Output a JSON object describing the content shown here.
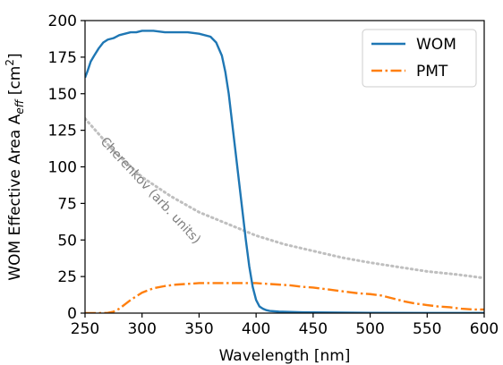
{
  "chart_data": {
    "type": "line",
    "xlabel": "Wavelength [nm]",
    "ylabel": "WOM Effective Area A",
    "ylabel_subscript": "eff",
    "ylabel_unit": " [cm",
    "ylabel_unit_sup": "2",
    "ylabel_unit_end": "]",
    "xlim": [
      250,
      600
    ],
    "ylim": [
      0,
      200
    ],
    "xticks": [
      250,
      300,
      350,
      400,
      450,
      500,
      550,
      600
    ],
    "yticks": [
      0,
      25,
      50,
      75,
      100,
      125,
      150,
      175,
      200
    ],
    "grid": false,
    "legend_position": "top-right",
    "series": [
      {
        "name": "WOM",
        "color": "#1f77b4",
        "style": "solid",
        "x": [
          250,
          252,
          255,
          258,
          262,
          266,
          270,
          275,
          280,
          285,
          290,
          295,
          300,
          305,
          310,
          320,
          330,
          340,
          350,
          360,
          365,
          370,
          373,
          376,
          379,
          382,
          385,
          388,
          391,
          394,
          397,
          400,
          403,
          406,
          409,
          412,
          415,
          420,
          430,
          440,
          450,
          475,
          500,
          550,
          600
        ],
        "y": [
          161,
          165,
          172,
          176,
          181,
          185,
          187,
          188,
          190,
          191,
          192,
          192,
          193,
          193,
          193,
          192,
          192,
          192,
          191,
          189,
          185,
          176,
          165,
          150,
          130,
          110,
          90,
          70,
          50,
          32,
          18,
          9,
          4.5,
          3,
          2,
          1.5,
          1.3,
          1,
          0.8,
          0.6,
          0.5,
          0.3,
          0.2,
          0.1,
          0.1
        ]
      },
      {
        "name": "PMT",
        "color": "#ff7f0e",
        "style": "dashdot",
        "x": [
          250,
          260,
          270,
          275,
          280,
          285,
          290,
          300,
          310,
          320,
          330,
          340,
          350,
          360,
          370,
          380,
          390,
          400,
          410,
          420,
          430,
          440,
          450,
          460,
          470,
          480,
          490,
          500,
          510,
          520,
          530,
          540,
          550,
          560,
          570,
          580,
          590,
          600
        ],
        "y": [
          0,
          0,
          0.2,
          1,
          3,
          6,
          9,
          14,
          17,
          18.5,
          19.5,
          20,
          20.5,
          20.5,
          20.5,
          20.5,
          20.5,
          20.5,
          20,
          19.5,
          19,
          18,
          17.5,
          16.5,
          15.5,
          14.5,
          13.5,
          13,
          12,
          10,
          8,
          6.5,
          5.5,
          4.5,
          4,
          3,
          2.5,
          2.5
        ]
      },
      {
        "color": "#bfbfbf",
        "style": "dotted",
        "x": [
          250,
          275,
          300,
          325,
          350,
          375,
          400,
          425,
          450,
          475,
          500,
          525,
          550,
          575,
          600
        ],
        "y": [
          133,
          111,
          93,
          80,
          69,
          61,
          53,
          47,
          42.5,
          38,
          34.5,
          31.5,
          28.5,
          26.5,
          24
        ]
      }
    ],
    "annotations": [
      {
        "text": "Cherenkov (arb. units)",
        "x": 263,
        "y": 117,
        "rotation_deg": 47,
        "color": "#7f7f7f"
      }
    ]
  }
}
